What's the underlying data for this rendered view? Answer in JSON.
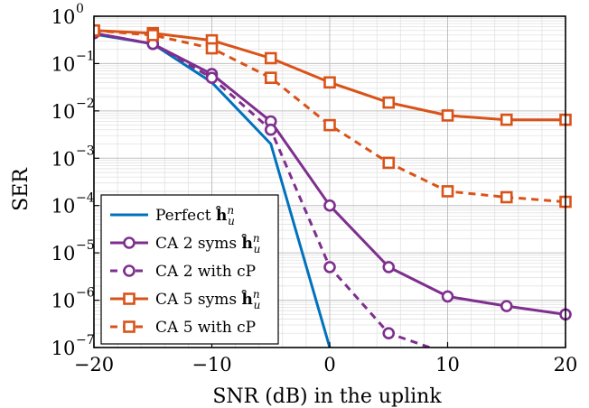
{
  "chart_data": {
    "type": "line",
    "xlabel": "SNR (dB) in the uplink",
    "ylabel": "SER",
    "xlim": [
      -20,
      20
    ],
    "ylim": [
      1e-07,
      1
    ],
    "yscale": "log",
    "grid": true,
    "legend_position": "bottom-left",
    "x_ticks": [
      -20,
      -10,
      0,
      10,
      20
    ],
    "x_tick_labels": [
      "−20",
      "−10",
      "0",
      "10",
      "20"
    ],
    "y_ticks": [
      0,
      -1,
      -2,
      -3,
      -4,
      -5,
      -6,
      -7
    ],
    "y_tick_labels": [
      "10",
      "10",
      "10",
      "10",
      "10",
      "10",
      "10",
      "10"
    ],
    "y_tick_exponents": [
      "0",
      "−1",
      "−2",
      "−3",
      "−4",
      "−5",
      "−6",
      "−7"
    ],
    "series": [
      {
        "name": "Perfect",
        "name_math": "ĥ",
        "name_sup": "n",
        "name_sub": "u",
        "color": "#0072BD",
        "dash": "solid",
        "marker": "none",
        "x": [
          -20,
          -15,
          -10,
          -5,
          0
        ],
        "y": [
          0.42,
          0.26,
          0.04,
          0.002,
          1e-07
        ]
      },
      {
        "name": "CA 2 syms",
        "name_math": "ĥ",
        "name_sup": "n",
        "name_sub": "u",
        "color": "#7E2F8E",
        "dash": "solid",
        "marker": "circle",
        "x": [
          -20,
          -15,
          -10,
          -5,
          0,
          5,
          10,
          15,
          20
        ],
        "y": [
          0.44,
          0.26,
          0.06,
          0.006,
          0.0001,
          5e-06,
          1.2e-06,
          7.5e-07,
          5e-07
        ]
      },
      {
        "name": "CA 2 with cP",
        "color": "#7E2F8E",
        "dash": "dashed",
        "marker": "circle",
        "x": [
          -20,
          -15,
          -10,
          -5,
          0,
          5,
          8.5
        ],
        "y": [
          0.44,
          0.26,
          0.05,
          0.004,
          5e-06,
          2e-07,
          1e-07
        ]
      },
      {
        "name": "CA 5 syms",
        "name_math": "ĥ",
        "name_sup": "n",
        "name_sub": "u",
        "color": "#D95319",
        "dash": "solid",
        "marker": "square",
        "x": [
          -20,
          -15,
          -10,
          -5,
          0,
          5,
          10,
          15,
          20
        ],
        "y": [
          0.5,
          0.44,
          0.31,
          0.13,
          0.04,
          0.015,
          0.008,
          0.0065,
          0.0065
        ]
      },
      {
        "name": "CA 5 with cP",
        "color": "#D95319",
        "dash": "dashed",
        "marker": "square",
        "x": [
          -20,
          -15,
          -10,
          -5,
          0,
          5,
          10,
          15,
          20
        ],
        "y": [
          0.5,
          0.4,
          0.21,
          0.05,
          0.005,
          0.0008,
          0.0002,
          0.00015,
          0.00012
        ]
      }
    ]
  }
}
